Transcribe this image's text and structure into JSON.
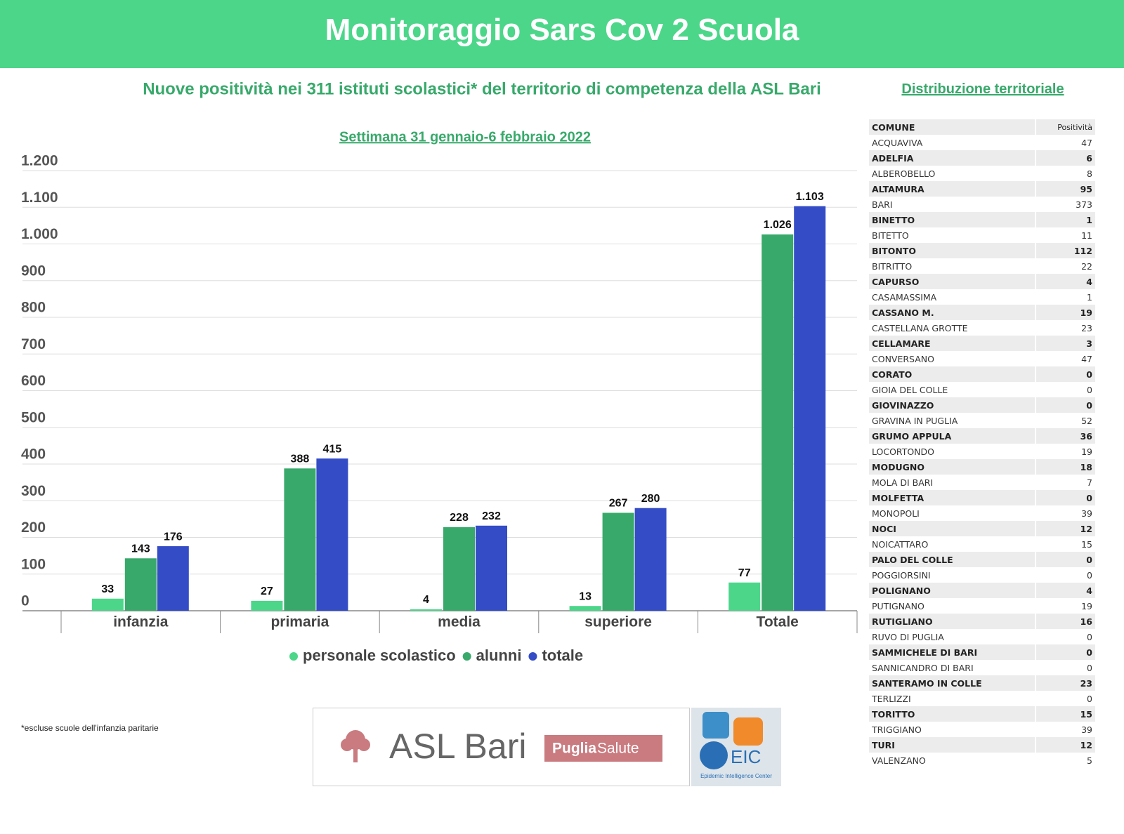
{
  "header": {
    "title": "Monitoraggio Sars Cov 2 Scuola"
  },
  "chart_data": {
    "type": "bar",
    "title": "Nuove positività nei 311 istituti scolastici* del territorio di competenza della ASL Bari",
    "subtitle": "Settimana 31 gennaio-6 febbraio 2022",
    "categories": [
      "infanzia",
      "primaria",
      "media",
      "superiore",
      "Totale"
    ],
    "series": [
      {
        "name": "personale scolastico",
        "color": "#4cd68a",
        "values": [
          33,
          27,
          4,
          13,
          77
        ]
      },
      {
        "name": "alunni",
        "color": "#38a96b",
        "values": [
          143,
          388,
          228,
          267,
          1026
        ],
        "value_labels": [
          "143",
          "388",
          "228",
          "267",
          "1.026"
        ]
      },
      {
        "name": "totale",
        "color": "#344cc6",
        "values": [
          176,
          415,
          232,
          280,
          1103
        ],
        "value_labels": [
          "176",
          "415",
          "232",
          "280",
          "1.103"
        ]
      }
    ],
    "ylim": [
      0,
      1200
    ],
    "yticks": [
      0,
      100,
      200,
      300,
      400,
      500,
      600,
      700,
      800,
      900,
      {
        "value": 1000,
        "label": "1.000"
      },
      {
        "value": 1100,
        "label": "1.100"
      },
      {
        "value": 1200,
        "label": "1.200"
      }
    ],
    "grid": true,
    "legend": "bottom"
  },
  "footnote": "*escluse scuole dell'infanzia paritarie",
  "logos": {
    "asl": "ASL Bari",
    "puglia_1": "Puglia",
    "puglia_2": "Salute",
    "eic": "EIC",
    "eic_sub": "Epidemic Intelligence Center"
  },
  "table": {
    "title": "Distribuzione territoriale",
    "columns": [
      "COMUNE",
      "Positività"
    ],
    "rows": [
      [
        "ACQUAVIVA",
        "47"
      ],
      [
        "ADELFIA",
        "6"
      ],
      [
        "ALBEROBELLO",
        "8"
      ],
      [
        "ALTAMURA",
        "95"
      ],
      [
        "BARI",
        "373"
      ],
      [
        "BINETTO",
        "1"
      ],
      [
        "BITETTO",
        "11"
      ],
      [
        "BITONTO",
        "112"
      ],
      [
        "BITRITTO",
        "22"
      ],
      [
        "CAPURSO",
        "4"
      ],
      [
        "CASAMASSIMA",
        "1"
      ],
      [
        "CASSANO M.",
        "19"
      ],
      [
        "CASTELLANA  GROTTE",
        "23"
      ],
      [
        "CELLAMARE",
        "3"
      ],
      [
        "CONVERSANO",
        "47"
      ],
      [
        "CORATO",
        "0"
      ],
      [
        "GIOIA DEL COLLE",
        "0"
      ],
      [
        "GIOVINAZZO",
        "0"
      ],
      [
        "GRAVINA IN PUGLIA",
        "52"
      ],
      [
        "GRUMO APPULA",
        "36"
      ],
      [
        "LOCORTONDO",
        "19"
      ],
      [
        "MODUGNO",
        "18"
      ],
      [
        "MOLA DI BARI",
        "7"
      ],
      [
        "MOLFETTA",
        "0"
      ],
      [
        "MONOPOLI",
        "39"
      ],
      [
        "NOCI",
        "12"
      ],
      [
        "NOICATTARO",
        "15"
      ],
      [
        "PALO DEL COLLE",
        "0"
      ],
      [
        "POGGIORSINI",
        "0"
      ],
      [
        "POLIGNANO",
        "4"
      ],
      [
        "PUTIGNANO",
        "19"
      ],
      [
        "RUTIGLIANO",
        "16"
      ],
      [
        "RUVO DI PUGLIA",
        "0"
      ],
      [
        "SAMMICHELE DI BARI",
        "0"
      ],
      [
        "SANNICANDRO DI BARI",
        "0"
      ],
      [
        "SANTERAMO IN COLLE",
        "23"
      ],
      [
        "TERLIZZI",
        "0"
      ],
      [
        "TORITTO",
        "15"
      ],
      [
        "TRIGGIANO",
        "39"
      ],
      [
        "TURI",
        "12"
      ],
      [
        "VALENZANO",
        "5"
      ]
    ]
  }
}
